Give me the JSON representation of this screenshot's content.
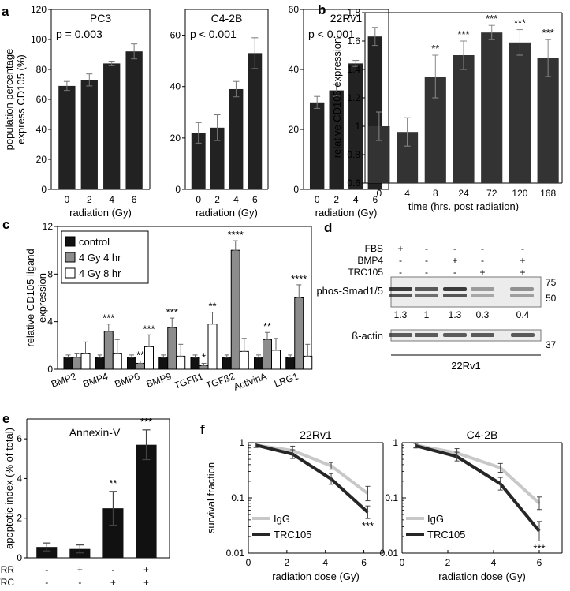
{
  "chart_data": [
    {
      "id": "a1",
      "panel_label": "a",
      "type": "bar",
      "title": "PC3",
      "annotation": "p = 0.003",
      "categories": [
        "0",
        "2",
        "4",
        "6"
      ],
      "values": [
        69,
        73,
        84,
        92
      ],
      "errors": [
        3,
        4,
        1.5,
        5
      ],
      "ylim": [
        0,
        120
      ],
      "yticks": [
        0,
        20,
        40,
        60,
        80,
        100,
        120
      ],
      "xlabel": "radiation (Gy)",
      "ylabel_lines": [
        "population percentage",
        "express CD105 (%)"
      ],
      "color": "#222222"
    },
    {
      "id": "a2",
      "type": "bar",
      "title": "C4-2B",
      "annotation": "p < 0.001",
      "categories": [
        "0",
        "2",
        "4",
        "6"
      ],
      "values": [
        22,
        24,
        39,
        53
      ],
      "errors": [
        4,
        5,
        3,
        6
      ],
      "ylim": [
        0,
        70
      ],
      "yticks": [
        0,
        20,
        40,
        60
      ],
      "xlabel": "radiation (Gy)",
      "color": "#222222"
    },
    {
      "id": "a3",
      "type": "bar",
      "title": "22Rv1",
      "annotation": "p < 0.001",
      "categories": [
        "0",
        "2",
        "4",
        "6"
      ],
      "values": [
        29,
        33,
        42,
        51
      ],
      "errors": [
        2,
        2,
        1,
        3
      ],
      "ylim": [
        0,
        60
      ],
      "yticks": [
        0,
        20,
        40,
        60
      ],
      "xlabel": "radiation (Gy)",
      "color": "#222222"
    },
    {
      "id": "b",
      "panel_label": "b",
      "type": "bar",
      "categories": [
        "0",
        "4",
        "8",
        "24",
        "72",
        "120",
        "168"
      ],
      "values": [
        1.0,
        0.96,
        1.35,
        1.5,
        1.66,
        1.59,
        1.48
      ],
      "errors": [
        0.1,
        0.1,
        0.15,
        0.1,
        0.05,
        0.09,
        0.13
      ],
      "significance": [
        "",
        "",
        "**",
        "***",
        "***",
        "***",
        "***"
      ],
      "ylim": [
        0.6,
        1.8
      ],
      "yticks": [
        0.6,
        0.8,
        1,
        1.2,
        1.4,
        1.6,
        1.8
      ],
      "xlabel": "time (hrs. post radiation)",
      "ylabel": "relative CD105 expression",
      "color": "#333333"
    },
    {
      "id": "c",
      "panel_label": "c",
      "type": "bar",
      "categories": [
        "BMP2",
        "BMP4",
        "BMP6",
        "BMP9",
        "TGFß1",
        "TGFß2",
        "ActivinA",
        "LRG1"
      ],
      "series": [
        {
          "name": "control",
          "values": [
            1,
            1,
            1,
            1,
            1,
            1,
            1,
            1
          ],
          "errors": [
            0.2,
            0.2,
            0.2,
            0.2,
            0.2,
            0.2,
            0.2,
            0.2
          ],
          "significance": [
            "",
            "",
            "",
            "",
            "",
            "",
            "",
            ""
          ],
          "color": "#111111"
        },
        {
          "name": "4 Gy 4 hr",
          "values": [
            1,
            3.2,
            0.5,
            3.5,
            0.3,
            10,
            2.5,
            6
          ],
          "errors": [
            0.3,
            0.6,
            0.2,
            0.8,
            0.2,
            0.8,
            0.6,
            1.1
          ],
          "significance": [
            "",
            "***",
            "**",
            "***",
            "*",
            "****",
            "**",
            "****"
          ],
          "color": "#8c8c8c"
        },
        {
          "name": "4 Gy 8 hr",
          "values": [
            1.3,
            1.3,
            1.9,
            1.1,
            3.8,
            1.5,
            1.6,
            1.1
          ],
          "errors": [
            1.0,
            1.2,
            1.0,
            1.0,
            1.0,
            1.1,
            1.0,
            1.0
          ],
          "significance": [
            "",
            "",
            "***",
            "",
            "**",
            "",
            "",
            ""
          ],
          "color": "#ffffff"
        }
      ],
      "ylim": [
        0,
        12
      ],
      "yticks": [
        0,
        4,
        8,
        12
      ],
      "ylabel_lines": [
        "relative CD105 ligand",
        "expression"
      ]
    },
    {
      "id": "e",
      "panel_label": "e",
      "type": "bar",
      "title": "Annexin-V",
      "values": [
        0.55,
        0.45,
        2.5,
        5.7
      ],
      "errors": [
        0.2,
        0.2,
        0.85,
        0.75
      ],
      "significance": [
        "",
        "",
        "**",
        "***"
      ],
      "ylim": [
        0,
        7
      ],
      "yticks": [
        0,
        2,
        4,
        6
      ],
      "ylabel": "apoptotic index (% of total)",
      "condition_rows": [
        {
          "label": "IRR",
          "marks": [
            "-",
            "+",
            "-",
            "+"
          ]
        },
        {
          "label": "TRC",
          "marks": [
            "-",
            "-",
            "+",
            "+"
          ]
        }
      ],
      "color": "#111111"
    },
    {
      "id": "f1",
      "panel_label": "f",
      "type": "line",
      "title": "22Rv1",
      "yscale": "log",
      "ylim": [
        0.01,
        1
      ],
      "yticks": [
        "0.01",
        "0.1",
        "1"
      ],
      "xlim": [
        0,
        7
      ],
      "xticks": [
        0,
        2,
        4,
        6
      ],
      "xlabel": "radiation dose (Gy)",
      "ylabel": "survival fraction",
      "series": [
        {
          "name": "IgG",
          "color": "#c8c8c8",
          "x": [
            0.4,
            2.3,
            4.3,
            6.2
          ],
          "y": [
            0.9,
            0.72,
            0.38,
            0.12
          ],
          "err": [
            1.1,
            1.2,
            1.15,
            1.35
          ]
        },
        {
          "name": "TRC105",
          "color": "#262626",
          "x": [
            0.4,
            2.3,
            4.3,
            6.2
          ],
          "y": [
            0.9,
            0.62,
            0.22,
            0.055
          ],
          "err": [
            1.1,
            1.2,
            1.25,
            1.3
          ]
        }
      ],
      "significance": [
        {
          "x": 6.2,
          "text": "***"
        }
      ],
      "legend_loc": "bottom-left"
    },
    {
      "id": "f2",
      "type": "line",
      "title": "C4-2B",
      "yscale": "log",
      "ylim": [
        0.01,
        1
      ],
      "yticks": [
        "0.01",
        "0.1",
        "1"
      ],
      "xlim": [
        0,
        7
      ],
      "xticks": [
        0,
        2,
        4,
        6
      ],
      "xlabel": "radiation dose (Gy)",
      "series": [
        {
          "name": "IgG",
          "color": "#c8c8c8",
          "x": [
            0.6,
            2.4,
            4.3,
            6.0
          ],
          "y": [
            0.9,
            0.65,
            0.35,
            0.08
          ],
          "err": [
            1.1,
            1.2,
            1.2,
            1.3
          ]
        },
        {
          "name": "TRC105",
          "color": "#262626",
          "x": [
            0.6,
            2.4,
            4.3,
            6.0
          ],
          "y": [
            0.88,
            0.56,
            0.18,
            0.025
          ],
          "err": [
            1.1,
            1.2,
            1.3,
            1.5
          ]
        }
      ],
      "significance": [
        {
          "x": 6.0,
          "text": "***"
        }
      ],
      "legend_loc": "bottom-left"
    }
  ],
  "western_blot": {
    "panel_label": "d",
    "conditions": [
      {
        "label": "FBS",
        "marks": [
          "+",
          "-",
          "-",
          "-",
          "-"
        ]
      },
      {
        "label": "BMP4",
        "marks": [
          "-",
          "-",
          "+",
          "-",
          "+"
        ]
      },
      {
        "label": "TRC105",
        "marks": [
          "-",
          "-",
          "-",
          "+",
          "+"
        ]
      }
    ],
    "band_label": "phos-Smad1/5",
    "mw_markers": [
      "75",
      "50",
      "37"
    ],
    "quantification": [
      "1.3",
      "1",
      "1.3",
      "0.3",
      "0.4"
    ],
    "loading_label": "ß-actin",
    "cell_line": "22Rv1"
  }
}
